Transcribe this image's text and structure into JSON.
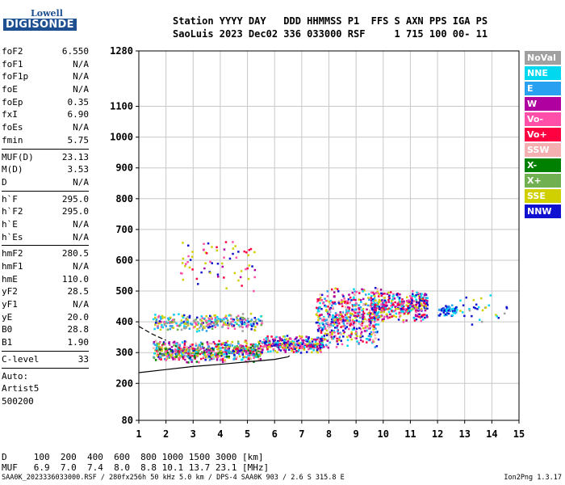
{
  "logo": {
    "line1": "Lowell",
    "line2": "DIGISONDE"
  },
  "header": {
    "row1": "Station YYYY DAY   DDD HHMMSS P1  FFS S AXN PPS IGA PS",
    "row2": "SaoLuis 2023 Dec02 336 033000 RSF     1 715 100 00- 11"
  },
  "params": [
    {
      "k": "foF2",
      "v": "6.550"
    },
    {
      "k": "foF1",
      "v": "N/A"
    },
    {
      "k": "foF1p",
      "v": "N/A"
    },
    {
      "k": "foE",
      "v": "N/A"
    },
    {
      "k": "foEp",
      "v": "0.35"
    },
    {
      "k": "fxI",
      "v": "6.90"
    },
    {
      "k": "foEs",
      "v": "N/A"
    },
    {
      "k": "fmin",
      "v": "5.75"
    },
    {
      "k": "MUF(D)",
      "v": "23.13"
    },
    {
      "k": "M(D)",
      "v": "3.53"
    },
    {
      "k": "D",
      "v": "N/A"
    },
    {
      "k": "h`F",
      "v": "295.0"
    },
    {
      "k": "h`F2",
      "v": "295.0"
    },
    {
      "k": "h`E",
      "v": "N/A"
    },
    {
      "k": "h`Es",
      "v": "N/A"
    },
    {
      "k": "hmF2",
      "v": "280.5"
    },
    {
      "k": "hmF1",
      "v": "N/A"
    },
    {
      "k": "hmE",
      "v": "110.0"
    },
    {
      "k": "yF2",
      "v": "28.5"
    },
    {
      "k": "yF1",
      "v": "N/A"
    },
    {
      "k": "yE",
      "v": "20.0"
    },
    {
      "k": "B0",
      "v": "28.8"
    },
    {
      "k": "B1",
      "v": "1.90"
    },
    {
      "k": "C-level",
      "v": "33"
    }
  ],
  "auto": {
    "l1": "Auto:",
    "l2": "Artist5",
    "l3": "500200"
  },
  "legend": [
    {
      "label": "NoVal",
      "color": "#a0a0a0"
    },
    {
      "label": "NNE",
      "color": "#00d8f0"
    },
    {
      "label": "E",
      "color": "#2aa0f0"
    },
    {
      "label": "W",
      "color": "#b000a0"
    },
    {
      "label": "Vo-",
      "color": "#ff4fa8"
    },
    {
      "label": "Vo+",
      "color": "#ff0040"
    },
    {
      "label": "SSW",
      "color": "#f4b0b0"
    },
    {
      "label": "X-",
      "color": "#008000"
    },
    {
      "label": "X+",
      "color": "#70b050"
    },
    {
      "label": "SSE",
      "color": "#d0d000"
    },
    {
      "label": "NNW",
      "color": "#1010d0"
    }
  ],
  "muf_table": {
    "row_d": "D     100  200  400  600  800 1000 1500 3000 [km]",
    "row_muf": "MUF   6.9  7.0  7.4  8.0  8.8 10.1 13.7 23.1 [MHz]"
  },
  "footer": "SAA0K_2023336033000.RSF / 280fx256h 50 kHz 5.0 km / DPS-4 SAA0K 903 / 2.6 S 315.8 E",
  "version": "Ion2Png 1.3.17",
  "chart_data": {
    "type": "scatter",
    "xlabel": "",
    "ylabel": "",
    "xlim": [
      1,
      15
    ],
    "ylim": [
      80,
      1280
    ],
    "x_ticks": [
      1,
      2,
      3,
      4,
      5,
      6,
      7,
      8,
      9,
      10,
      11,
      12,
      13,
      14,
      15
    ],
    "y_ticks": [
      80,
      200,
      300,
      400,
      500,
      600,
      700,
      800,
      900,
      1000,
      1100,
      1280
    ],
    "grid": true,
    "profile_curve": [
      [
        1.0,
        235
      ],
      [
        2.0,
        245
      ],
      [
        3.0,
        255
      ],
      [
        4.0,
        262
      ],
      [
        5.0,
        270
      ],
      [
        6.0,
        278
      ],
      [
        6.5,
        286
      ],
      [
        6.55,
        290
      ]
    ],
    "trace_curve": [
      [
        1.0,
        385
      ],
      [
        1.5,
        360
      ],
      [
        2.0,
        340
      ]
    ],
    "clusters": [
      {
        "x": [
          1.5,
          5.5
        ],
        "y": [
          270,
          345
        ],
        "n": 650,
        "colors": [
          "#1010d0",
          "#00d8f0",
          "#b000a0",
          "#ff4fa8",
          "#d0d000",
          "#008000",
          "#2aa0f0",
          "#ff0040",
          "#70b050",
          "#f4b0b0"
        ]
      },
      {
        "x": [
          1.5,
          5.5
        ],
        "y": [
          370,
          430
        ],
        "n": 300,
        "colors": [
          "#d0d000",
          "#00d8f0",
          "#2aa0f0",
          "#1010d0",
          "#70b050",
          "#a0a0a0",
          "#ff4fa8"
        ]
      },
      {
        "x": [
          5.5,
          7.8
        ],
        "y": [
          300,
          360
        ],
        "n": 320,
        "colors": [
          "#b000a0",
          "#ff4fa8",
          "#1010d0",
          "#00d8f0",
          "#ff0040",
          "#d0d000"
        ]
      },
      {
        "x": [
          7.5,
          9.8
        ],
        "y": [
          310,
          520
        ],
        "n": 560,
        "colors": [
          "#ff4fa8",
          "#b000a0",
          "#ff0040",
          "#1010d0",
          "#d0d000",
          "#00d8f0",
          "#f4b0b0",
          "#2aa0f0"
        ]
      },
      {
        "x": [
          9.5,
          11.6
        ],
        "y": [
          400,
          510
        ],
        "n": 380,
        "colors": [
          "#b000a0",
          "#ff4fa8",
          "#ff0040",
          "#1010d0",
          "#00d8f0",
          "#d0d000"
        ]
      },
      {
        "x": [
          12.0,
          12.7
        ],
        "y": [
          420,
          460
        ],
        "n": 70,
        "colors": [
          "#00d8f0",
          "#2aa0f0",
          "#1010d0"
        ]
      },
      {
        "x": [
          2.5,
          5.3
        ],
        "y": [
          500,
          680
        ],
        "n": 70,
        "colors": [
          "#b000a0",
          "#ff4fa8",
          "#1010d0",
          "#d0d000",
          "#ff0040"
        ]
      },
      {
        "x": [
          12.8,
          14.6
        ],
        "y": [
          380,
          500
        ],
        "n": 30,
        "colors": [
          "#d0d000",
          "#00d8f0",
          "#1010d0",
          "#a0a0a0"
        ]
      }
    ]
  }
}
